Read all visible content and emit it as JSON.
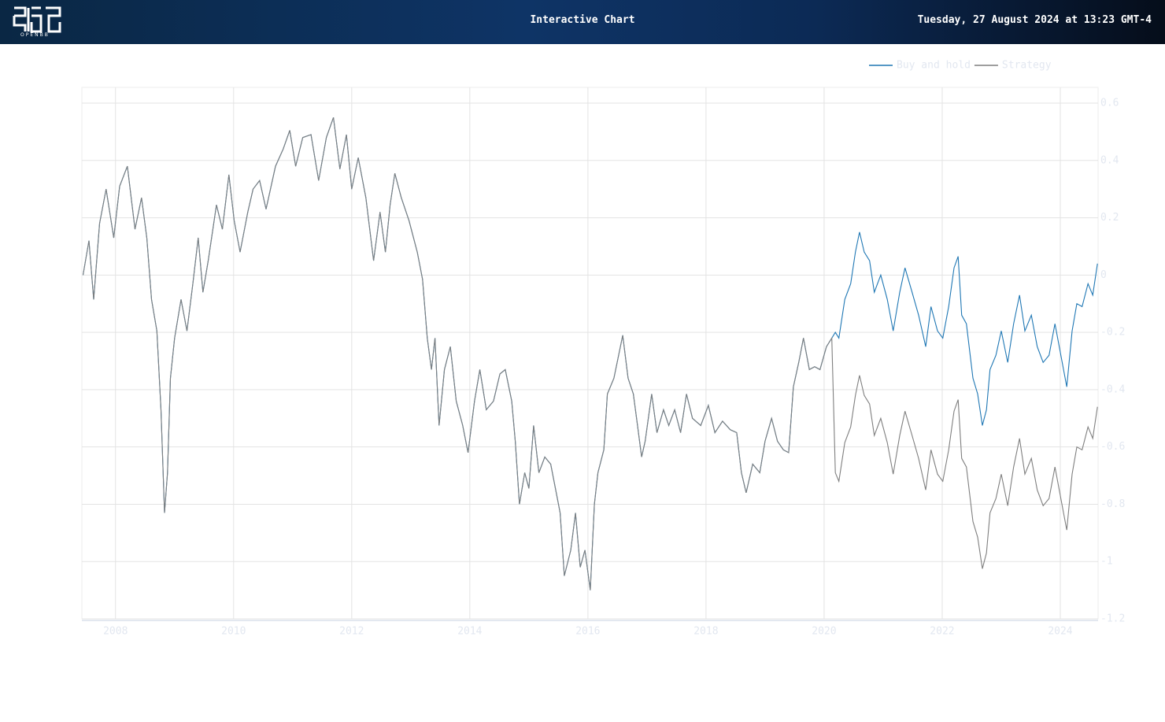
{
  "header": {
    "title": "Interactive Chart",
    "datetime": "Tuesday, 27 August 2024 at 13:23 GMT-4",
    "logo_text": "OPENBB"
  },
  "chart_data": {
    "type": "line",
    "x": [
      2007.45,
      2007.55,
      2007.63,
      2007.73,
      2007.84,
      2007.97,
      2008.07,
      2008.2,
      2008.33,
      2008.44,
      2008.53,
      2008.61,
      2008.7,
      2008.77,
      2008.83,
      2008.88,
      2008.93,
      2009.0,
      2009.11,
      2009.21,
      2009.31,
      2009.4,
      2009.48,
      2009.57,
      2009.71,
      2009.81,
      2009.92,
      2010.01,
      2010.11,
      2010.24,
      2010.33,
      2010.44,
      2010.55,
      2010.71,
      2010.84,
      2010.95,
      2011.05,
      2011.17,
      2011.31,
      2011.44,
      2011.57,
      2011.69,
      2011.8,
      2011.91,
      2012.0,
      2012.11,
      2012.24,
      2012.37,
      2012.48,
      2012.57,
      2012.65,
      2012.73,
      2012.84,
      2012.97,
      2013.11,
      2013.2,
      2013.28,
      2013.35,
      2013.41,
      2013.48,
      2013.57,
      2013.67,
      2013.77,
      2013.88,
      2013.97,
      2014.08,
      2014.17,
      2014.28,
      2014.4,
      2014.51,
      2014.6,
      2014.71,
      2014.77,
      2014.84,
      2014.93,
      2015.0,
      2015.08,
      2015.17,
      2015.27,
      2015.37,
      2015.45,
      2015.53,
      2015.6,
      2015.71,
      2015.79,
      2015.87,
      2015.95,
      2016.04,
      2016.11,
      2016.17,
      2016.27,
      2016.33,
      2016.44,
      2016.52,
      2016.59,
      2016.68,
      2016.77,
      2016.84,
      2016.91,
      2016.97,
      2017.08,
      2017.17,
      2017.28,
      2017.37,
      2017.47,
      2017.57,
      2017.67,
      2017.77,
      2017.91,
      2018.04,
      2018.15,
      2018.28,
      2018.41,
      2018.52,
      2018.6,
      2018.68,
      2018.79,
      2018.91,
      2019.0,
      2019.11,
      2019.21,
      2019.31,
      2019.4,
      2019.48,
      2019.57,
      2019.65,
      2019.75,
      2019.84,
      2019.93,
      2020.04,
      2020.13,
      2020.19,
      2020.25,
      2020.35,
      2020.45,
      2020.53,
      2020.6,
      2020.68,
      2020.77,
      2020.85,
      2020.96,
      2021.07,
      2021.17,
      2021.28,
      2021.37,
      2021.49,
      2021.6,
      2021.72,
      2021.81,
      2021.92,
      2022.01,
      2022.11,
      2022.2,
      2022.27,
      2022.33,
      2022.41,
      2022.52,
      2022.6,
      2022.68,
      2022.75,
      2022.81,
      2022.91,
      2023.0,
      2023.11,
      2023.21,
      2023.31,
      2023.4,
      2023.51,
      2023.61,
      2023.71,
      2023.81,
      2023.91,
      2024.01,
      2024.11,
      2024.2,
      2024.28,
      2024.37,
      2024.47,
      2024.55,
      2024.63
    ],
    "series": [
      {
        "name": "Buy and hold",
        "color": "#1f77b4",
        "values": [
          0.0,
          0.12,
          -0.085,
          0.18,
          0.3,
          0.13,
          0.31,
          0.38,
          0.16,
          0.27,
          0.13,
          -0.085,
          -0.195,
          -0.47,
          -0.83,
          -0.69,
          -0.36,
          -0.22,
          -0.085,
          -0.195,
          -0.03,
          0.13,
          -0.06,
          0.05,
          0.245,
          0.16,
          0.35,
          0.19,
          0.08,
          0.22,
          0.3,
          0.33,
          0.23,
          0.38,
          0.44,
          0.505,
          0.38,
          0.48,
          0.49,
          0.33,
          0.48,
          0.55,
          0.37,
          0.49,
          0.3,
          0.41,
          0.27,
          0.05,
          0.22,
          0.08,
          0.245,
          0.355,
          0.27,
          0.19,
          0.08,
          -0.015,
          -0.22,
          -0.33,
          -0.22,
          -0.525,
          -0.33,
          -0.25,
          -0.44,
          -0.525,
          -0.62,
          -0.44,
          -0.33,
          -0.47,
          -0.44,
          -0.345,
          -0.33,
          -0.44,
          -0.58,
          -0.8,
          -0.69,
          -0.745,
          -0.525,
          -0.69,
          -0.635,
          -0.66,
          -0.745,
          -0.83,
          -1.05,
          -0.96,
          -0.83,
          -1.02,
          -0.96,
          -1.1,
          -0.8,
          -0.69,
          -0.61,
          -0.415,
          -0.36,
          -0.28,
          -0.21,
          -0.36,
          -0.415,
          -0.525,
          -0.635,
          -0.58,
          -0.415,
          -0.55,
          -0.47,
          -0.525,
          -0.47,
          -0.55,
          -0.415,
          -0.5,
          -0.525,
          -0.455,
          -0.55,
          -0.51,
          -0.54,
          -0.55,
          -0.69,
          -0.76,
          -0.66,
          -0.69,
          -0.58,
          -0.5,
          -0.58,
          -0.61,
          -0.62,
          -0.39,
          -0.305,
          -0.22,
          -0.33,
          -0.32,
          -0.33,
          -0.25,
          -0.22,
          -0.2,
          -0.22,
          -0.085,
          -0.03,
          0.08,
          0.15,
          0.08,
          0.05,
          -0.06,
          0.0,
          -0.085,
          -0.195,
          -0.06,
          0.025,
          -0.06,
          -0.14,
          -0.25,
          -0.11,
          -0.195,
          -0.22,
          -0.11,
          0.025,
          0.065,
          -0.14,
          -0.17,
          -0.36,
          -0.415,
          -0.525,
          -0.47,
          -0.33,
          -0.28,
          -0.195,
          -0.305,
          -0.17,
          -0.07,
          -0.195,
          -0.14,
          -0.25,
          -0.305,
          -0.28,
          -0.17,
          -0.28,
          -0.39,
          -0.195,
          -0.1,
          -0.11,
          -0.03,
          -0.07,
          0.04
        ]
      },
      {
        "name": "Strategy",
        "color": "#7f7f7f",
        "values": [
          0.0,
          0.12,
          -0.085,
          0.18,
          0.3,
          0.13,
          0.31,
          0.38,
          0.16,
          0.27,
          0.13,
          -0.085,
          -0.195,
          -0.47,
          -0.83,
          -0.69,
          -0.36,
          -0.22,
          -0.085,
          -0.195,
          -0.03,
          0.13,
          -0.06,
          0.05,
          0.245,
          0.16,
          0.35,
          0.19,
          0.08,
          0.22,
          0.3,
          0.33,
          0.23,
          0.38,
          0.44,
          0.505,
          0.38,
          0.48,
          0.49,
          0.33,
          0.48,
          0.55,
          0.37,
          0.49,
          0.3,
          0.41,
          0.27,
          0.05,
          0.22,
          0.08,
          0.245,
          0.355,
          0.27,
          0.19,
          0.08,
          -0.015,
          -0.22,
          -0.33,
          -0.22,
          -0.525,
          -0.33,
          -0.25,
          -0.44,
          -0.525,
          -0.62,
          -0.44,
          -0.33,
          -0.47,
          -0.44,
          -0.345,
          -0.33,
          -0.44,
          -0.58,
          -0.8,
          -0.69,
          -0.745,
          -0.525,
          -0.69,
          -0.635,
          -0.66,
          -0.745,
          -0.83,
          -1.05,
          -0.96,
          -0.83,
          -1.02,
          -0.96,
          -1.1,
          -0.8,
          -0.69,
          -0.61,
          -0.415,
          -0.36,
          -0.28,
          -0.21,
          -0.36,
          -0.415,
          -0.525,
          -0.635,
          -0.58,
          -0.415,
          -0.55,
          -0.47,
          -0.525,
          -0.47,
          -0.55,
          -0.415,
          -0.5,
          -0.525,
          -0.455,
          -0.55,
          -0.51,
          -0.54,
          -0.55,
          -0.69,
          -0.76,
          -0.66,
          -0.69,
          -0.58,
          -0.5,
          -0.58,
          -0.61,
          -0.62,
          -0.39,
          -0.305,
          -0.22,
          -0.33,
          -0.32,
          -0.33,
          -0.25,
          -0.22,
          -0.69,
          -0.72,
          -0.585,
          -0.53,
          -0.42,
          -0.35,
          -0.42,
          -0.45,
          -0.56,
          -0.5,
          -0.585,
          -0.695,
          -0.56,
          -0.475,
          -0.56,
          -0.64,
          -0.75,
          -0.61,
          -0.695,
          -0.72,
          -0.61,
          -0.475,
          -0.435,
          -0.64,
          -0.67,
          -0.86,
          -0.915,
          -1.025,
          -0.97,
          -0.83,
          -0.78,
          -0.695,
          -0.805,
          -0.67,
          -0.57,
          -0.695,
          -0.64,
          -0.75,
          -0.805,
          -0.78,
          -0.67,
          -0.78,
          -0.89,
          -0.695,
          -0.6,
          -0.61,
          -0.53,
          -0.57,
          -0.46
        ]
      }
    ],
    "xlim": [
      2007.43,
      2024.64
    ],
    "xticks": [
      2008,
      2010,
      2012,
      2014,
      2016,
      2018,
      2020,
      2022,
      2024
    ],
    "ylim": [
      -1.2,
      0.655
    ],
    "yticks": [
      0.6,
      0.4,
      0.2,
      0,
      -0.2,
      -0.4,
      -0.6,
      -0.8,
      -1,
      -1.2
    ],
    "grid": true,
    "legend": "top-right"
  }
}
